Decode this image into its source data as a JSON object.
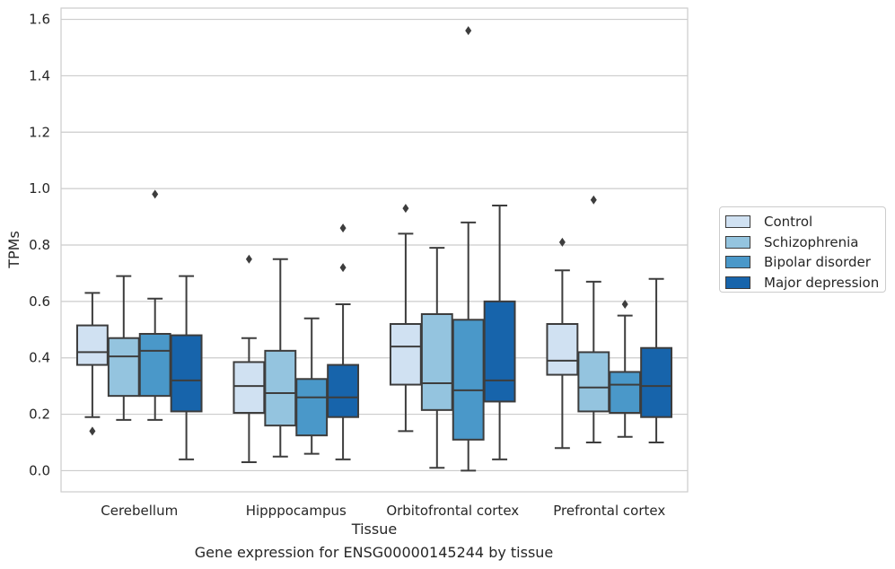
{
  "chart_data": {
    "type": "box",
    "title": "",
    "caption": "Gene expression for ENSG00000145244 by tissue",
    "xlabel": "Tissue",
    "ylabel": "TPMs",
    "ylim": [
      -0.075,
      1.64
    ],
    "yticks": [
      0.0,
      0.2,
      0.4,
      0.6,
      0.8,
      1.0,
      1.2,
      1.4,
      1.6
    ],
    "ytick_labels": [
      "0.0",
      "0.2",
      "0.4",
      "0.6",
      "0.8",
      "1.0",
      "1.2",
      "1.4",
      "1.6"
    ],
    "grid": "horizontal",
    "legend_position": "right, outside",
    "categories": [
      "Cerebellum",
      "Hipppocampus",
      "Orbitofrontal cortex",
      "Prefrontal cortex"
    ],
    "series": [
      {
        "name": "Control",
        "color": "#d0e1f2",
        "boxes": [
          {
            "whislo": 0.19,
            "q1": 0.375,
            "med": 0.42,
            "q3": 0.515,
            "whishi": 0.63,
            "fliers": [
              0.14
            ]
          },
          {
            "whislo": 0.03,
            "q1": 0.205,
            "med": 0.3,
            "q3": 0.385,
            "whishi": 0.47,
            "fliers": [
              0.75
            ]
          },
          {
            "whislo": 0.14,
            "q1": 0.305,
            "med": 0.44,
            "q3": 0.52,
            "whishi": 0.84,
            "fliers": [
              0.93
            ]
          },
          {
            "whislo": 0.08,
            "q1": 0.34,
            "med": 0.39,
            "q3": 0.52,
            "whishi": 0.71,
            "fliers": [
              0.81
            ]
          }
        ]
      },
      {
        "name": "Schizophrenia",
        "color": "#94c4df",
        "boxes": [
          {
            "whislo": 0.18,
            "q1": 0.265,
            "med": 0.405,
            "q3": 0.47,
            "whishi": 0.69,
            "fliers": []
          },
          {
            "whislo": 0.05,
            "q1": 0.16,
            "med": 0.275,
            "q3": 0.425,
            "whishi": 0.75,
            "fliers": []
          },
          {
            "whislo": 0.01,
            "q1": 0.215,
            "med": 0.31,
            "q3": 0.555,
            "whishi": 0.79,
            "fliers": []
          },
          {
            "whislo": 0.1,
            "q1": 0.21,
            "med": 0.295,
            "q3": 0.42,
            "whishi": 0.67,
            "fliers": [
              0.96
            ]
          }
        ]
      },
      {
        "name": "Bipolar disorder",
        "color": "#4a98c9",
        "boxes": [
          {
            "whislo": 0.18,
            "q1": 0.265,
            "med": 0.425,
            "q3": 0.485,
            "whishi": 0.61,
            "fliers": [
              0.98
            ]
          },
          {
            "whislo": 0.06,
            "q1": 0.125,
            "med": 0.26,
            "q3": 0.325,
            "whishi": 0.54,
            "fliers": []
          },
          {
            "whislo": 0.0,
            "q1": 0.11,
            "med": 0.285,
            "q3": 0.535,
            "whishi": 0.88,
            "fliers": [
              1.56
            ]
          },
          {
            "whislo": 0.12,
            "q1": 0.205,
            "med": 0.305,
            "q3": 0.35,
            "whishi": 0.55,
            "fliers": [
              0.59
            ]
          }
        ]
      },
      {
        "name": "Major depression",
        "color": "#1764ab",
        "boxes": [
          {
            "whislo": 0.04,
            "q1": 0.21,
            "med": 0.32,
            "q3": 0.48,
            "whishi": 0.69,
            "fliers": []
          },
          {
            "whislo": 0.04,
            "q1": 0.19,
            "med": 0.26,
            "q3": 0.375,
            "whishi": 0.59,
            "fliers": [
              0.72,
              0.86
            ]
          },
          {
            "whislo": 0.04,
            "q1": 0.245,
            "med": 0.32,
            "q3": 0.6,
            "whishi": 0.94,
            "fliers": []
          },
          {
            "whislo": 0.1,
            "q1": 0.19,
            "med": 0.3,
            "q3": 0.435,
            "whishi": 0.68,
            "fliers": []
          }
        ]
      }
    ]
  }
}
